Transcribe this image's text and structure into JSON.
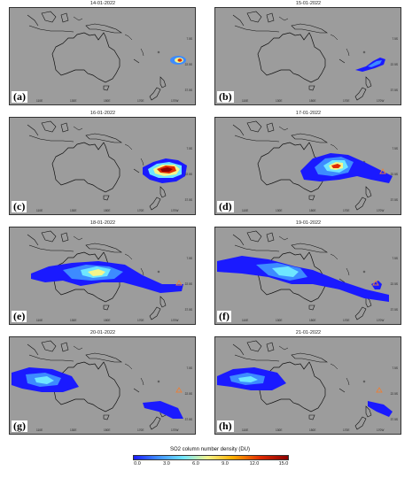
{
  "panels": [
    {
      "date": "14-01-2022",
      "label": "(a)"
    },
    {
      "date": "15-01-2022",
      "label": "(b)"
    },
    {
      "date": "16-01-2022",
      "label": "(c)"
    },
    {
      "date": "17-01-2022",
      "label": "(d)"
    },
    {
      "date": "18-01-2022",
      "label": "(e)"
    },
    {
      "date": "19-01-2022",
      "label": "(f)"
    },
    {
      "date": "20-01-2022",
      "label": "(g)"
    },
    {
      "date": "21-01-2022",
      "label": "(h)"
    }
  ],
  "axes": {
    "lat_ticks": [
      "7.5S",
      "22.5S",
      "37.5S"
    ],
    "lon_ticks": [
      "110E",
      "130E",
      "150E",
      "170E",
      "170W"
    ]
  },
  "colorbar": {
    "title": "SO2 column number density (DU)",
    "ticks": [
      "0.0",
      "3.0",
      "6.0",
      "9.0",
      "12.0",
      "15.0"
    ]
  },
  "colors": {
    "map_background": "#9c9c9c",
    "coastline": "#111111",
    "volcano_marker": "#e8803a",
    "colormap": [
      "#1a1aff",
      "#3d8bff",
      "#6ee6ff",
      "#f5f58a",
      "#ffb000",
      "#e02a00",
      "#8b0000"
    ]
  }
}
